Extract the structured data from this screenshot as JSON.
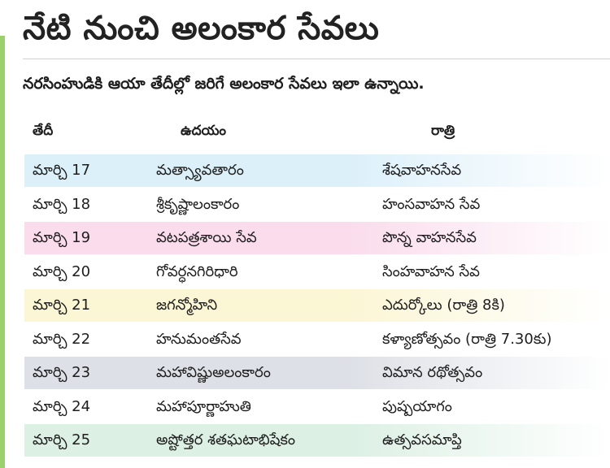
{
  "headline": "నేటి నుంచి అలంకార సేవలు",
  "intro": "నరసింహుడికి ఆయా తేదీల్లో జరిగే అలంకార సేవలు ఇలా ఉన్నాయి.",
  "columns": {
    "date": "తేదీ",
    "day": "ఉదయం",
    "night": "రాత్రి"
  },
  "colors": {
    "accent_bar": "#9bd16c",
    "row_blue": "#dcf0fa",
    "row_pink": "#fadcec",
    "row_yellow": "#fbf6d4",
    "row_gray": "#dde0e6",
    "row_green": "#dcf0e4"
  },
  "rows": [
    {
      "date": "మార్చి 17",
      "day": "మత్స్యావతారం",
      "night": "శేషవాహనసేవ",
      "color": "#dcf0fa"
    },
    {
      "date": "మార్చి 18",
      "day": "శ్రీకృష్ణాలంకారం",
      "night": "హంసవాహన సేవ",
      "color": "#ffffff"
    },
    {
      "date": "మార్చి 19",
      "day": "వటపత్రశాయి సేవ",
      "night": "పొన్న వాహనసేవ",
      "color": "#fadcec"
    },
    {
      "date": "మార్చి 20",
      "day": "గోవర్ధనగిరిధారి",
      "night": "సింహవాహన సేవ",
      "color": "#ffffff"
    },
    {
      "date": "మార్చి 21",
      "day": "జగన్మోహిని",
      "night": "ఎదుర్కోలు (రాత్రి 8కి)",
      "color": "#fbf6d4"
    },
    {
      "date": "మార్చి 22",
      "day": "హనుమంతసేవ",
      "night": "కళ్యాణోత్సవం (రాత్రి 7.30కు)",
      "color": "#ffffff"
    },
    {
      "date": "మార్చి 23",
      "day": "మహావిష్ణుఅలంకారం",
      "night": "విమాన రథోత్సవం",
      "color": "#dde0e6"
    },
    {
      "date": "మార్చి 24",
      "day": "మహాపూర్ణాహుతి",
      "night": "పుష్పయాగం",
      "color": "#ffffff"
    },
    {
      "date": "మార్చి 25",
      "day": "అష్టోత్తర శతఘటాభిషేకం",
      "night": "ఉత్సవసమాప్తి",
      "color": "#dcf0e4"
    }
  ]
}
